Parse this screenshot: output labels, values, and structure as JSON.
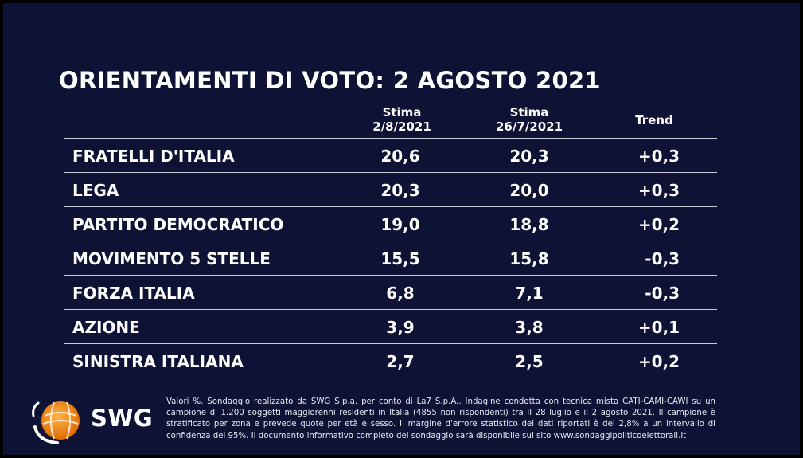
{
  "title": "ORIENTAMENTI DI VOTO: 2 AGOSTO 2021",
  "headers": {
    "col1_line1": "Stima",
    "col1_line2": "2/8/2021",
    "col2_line1": "Stima",
    "col2_line2": "26/7/2021",
    "col3": "Trend"
  },
  "chart_data": {
    "type": "table",
    "title": "ORIENTAMENTI DI VOTO: 2 AGOSTO 2021",
    "columns": [
      "Stima 2/8/2021",
      "Stima 26/7/2021",
      "Trend"
    ],
    "rows": [
      {
        "party": "FRATELLI D'ITALIA",
        "stima_2_8": "20,6",
        "stima_26_7": "20,3",
        "trend": "+0,3"
      },
      {
        "party": "LEGA",
        "stima_2_8": "20,3",
        "stima_26_7": "20,0",
        "trend": "+0,3"
      },
      {
        "party": "PARTITO DEMOCRATICO",
        "stima_2_8": "19,0",
        "stima_26_7": "18,8",
        "trend": "+0,2"
      },
      {
        "party": "MOVIMENTO 5 STELLE",
        "stima_2_8": "15,5",
        "stima_26_7": "15,8",
        "trend": "-0,3"
      },
      {
        "party": "FORZA ITALIA",
        "stima_2_8": "6,8",
        "stima_26_7": "7,1",
        "trend": "-0,3"
      },
      {
        "party": "AZIONE",
        "stima_2_8": "3,9",
        "stima_26_7": "3,8",
        "trend": "+0,1"
      },
      {
        "party": "SINISTRA ITALIANA",
        "stima_2_8": "2,7",
        "stima_26_7": "2,5",
        "trend": "+0,2"
      }
    ]
  },
  "logo": {
    "text": "SWG",
    "colors": {
      "orange": "#f7941d",
      "white": "#ffffff"
    }
  },
  "footnote": "Valori %. Sondaggio realizzato da SWG S.p.a. per conto di La7 S.p.A.. Indagine condotta con tecnica mista CATI-CAMI-CAWI su un campione di 1.200 soggetti maggiorenni residenti in Italia (4855 non rispondenti) tra il 28 luglio e il 2 agosto 2021. Il campione è stratificato per zona e prevede quote per età e sesso. Il margine d'errore statistico dei dati riportati è del 2,8% a un intervallo di confidenza del 95%. Il documento informativo completo del sondaggio sarà disponibile sul sito www.sondaggipoliticoelettorali.it",
  "colors": {
    "background": "#0e1336",
    "text": "#ffffff",
    "rule": "#c9ccd8"
  }
}
